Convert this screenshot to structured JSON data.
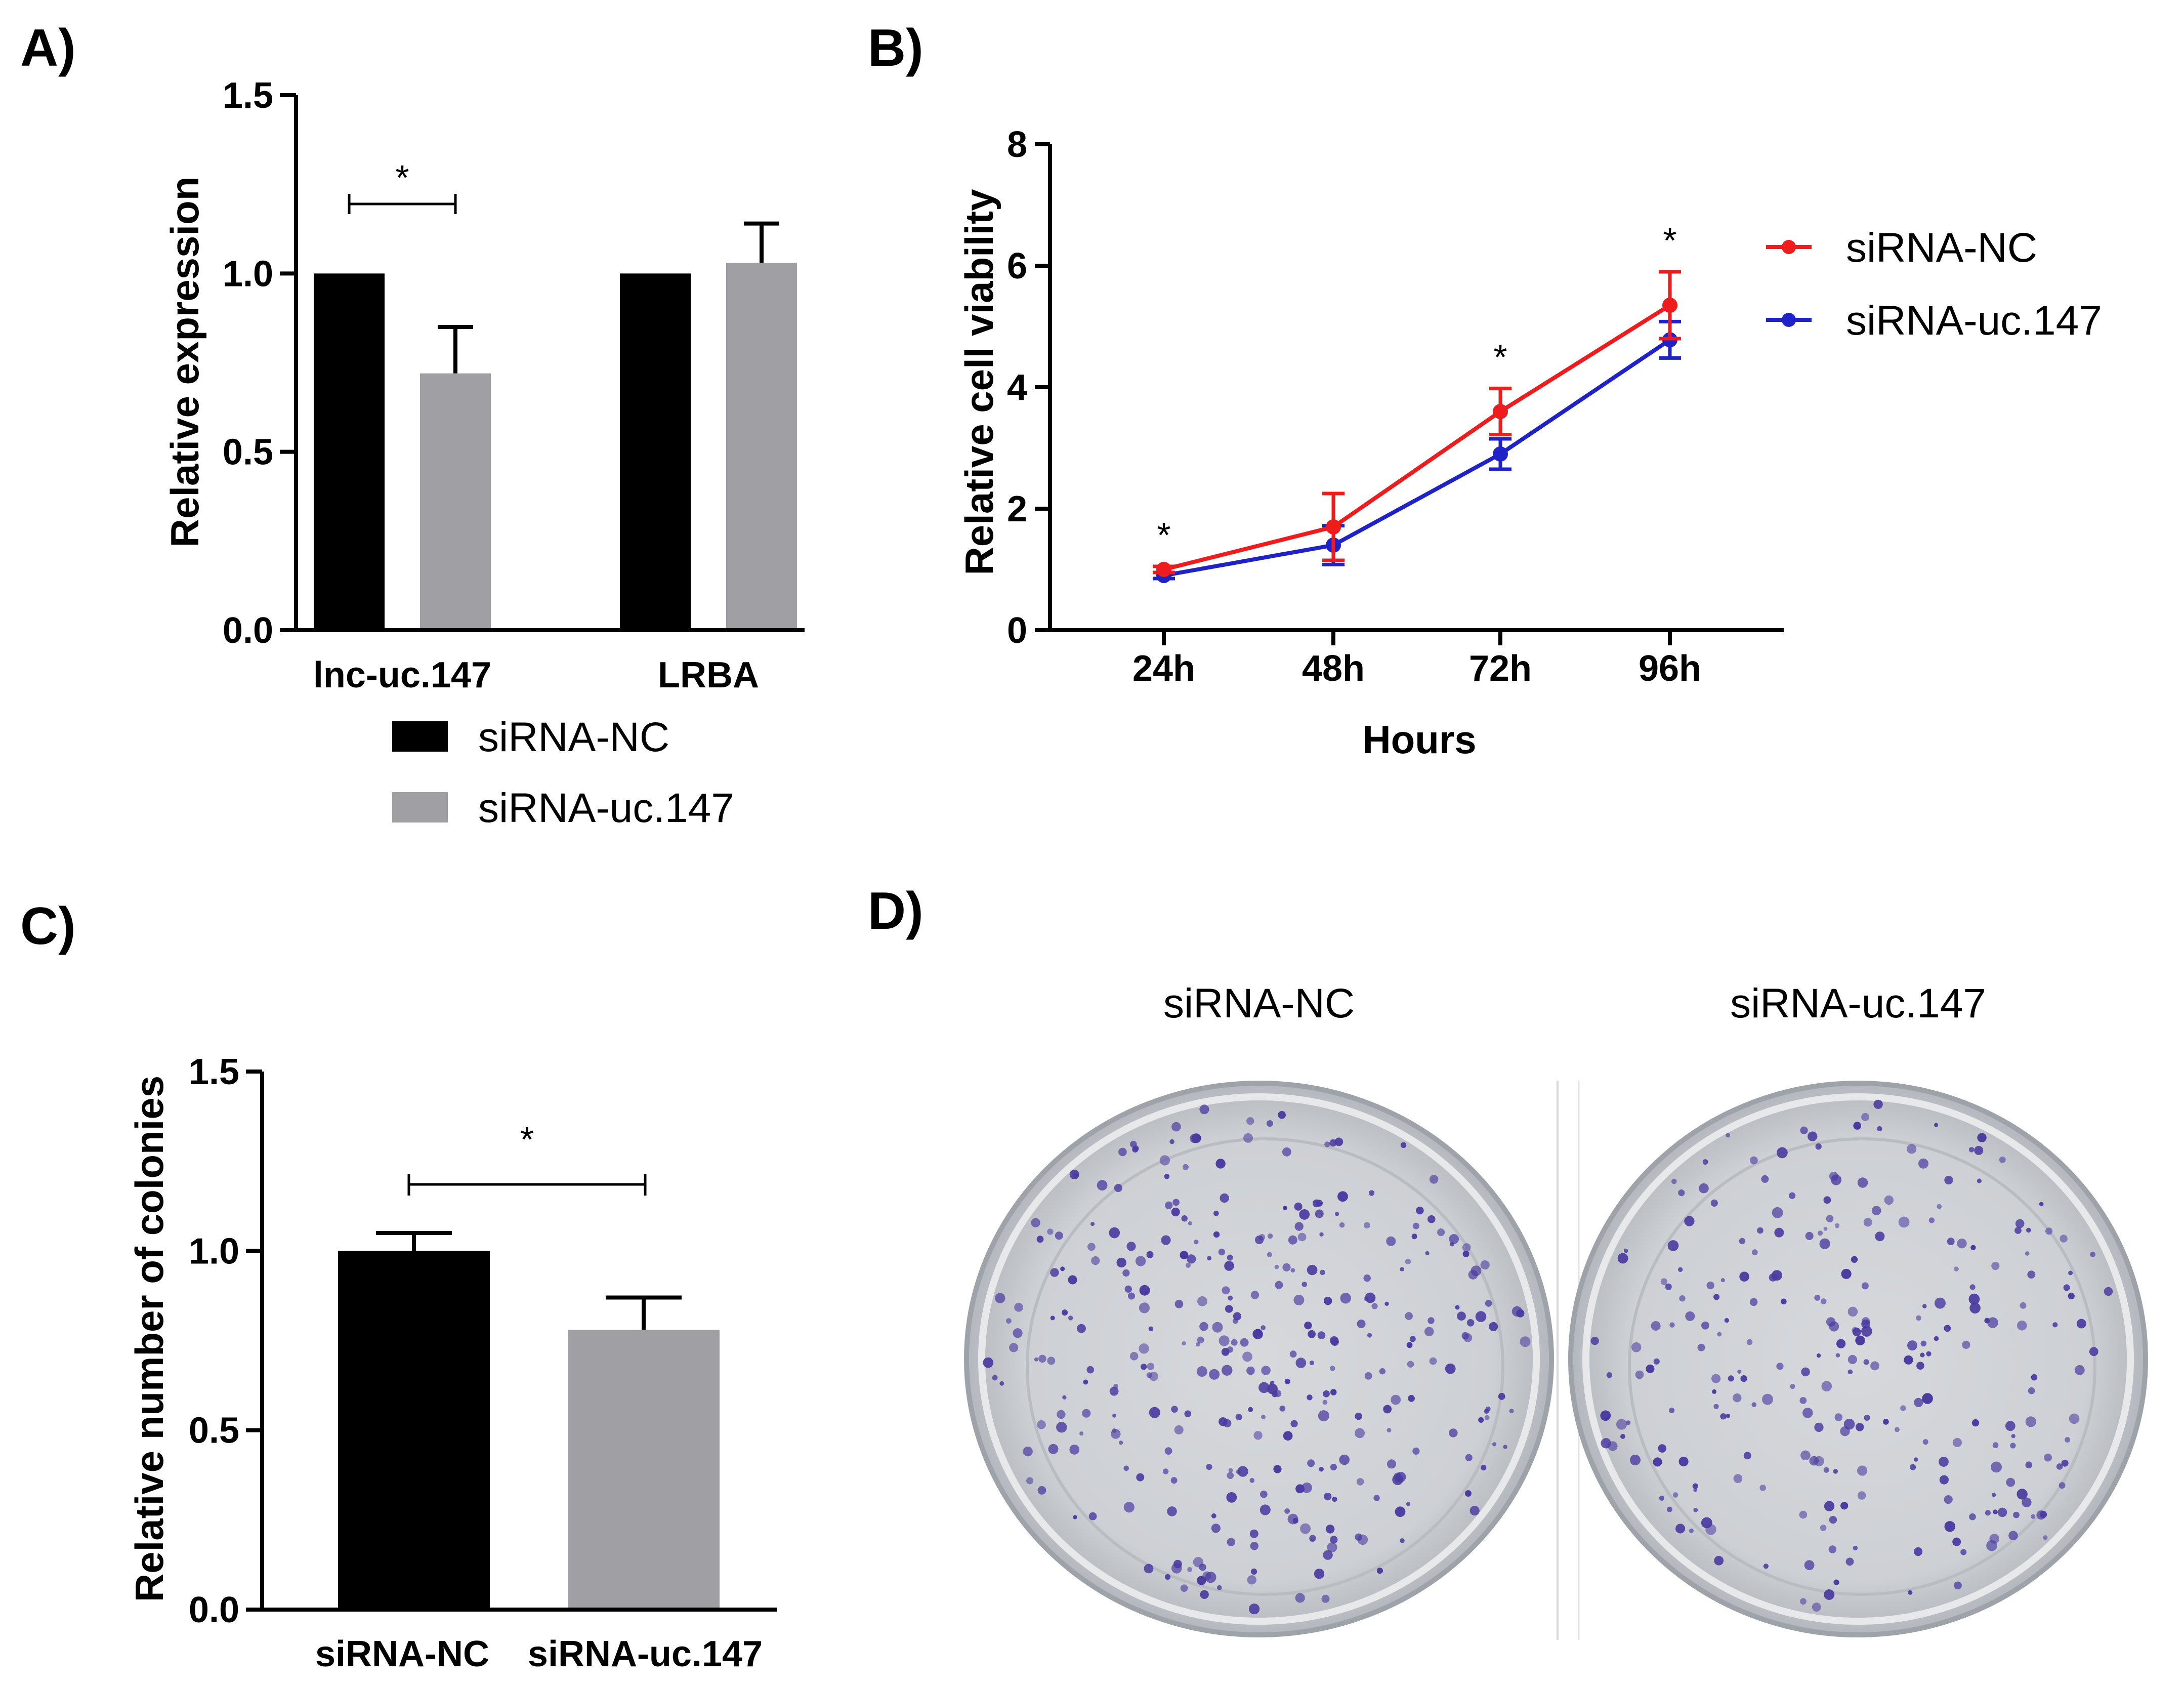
{
  "colors": {
    "siRNA_NC_bar": "#000000",
    "siRNA_uc147_bar": "#a0a0a4",
    "siRNA_NC_line": "#ee1c1c",
    "siRNA_uc147_line": "#1f22c8",
    "colony": "#4b3aa0",
    "plate": "#c9ccd0"
  },
  "chart_data": [
    {
      "panel": "A)",
      "type": "bar",
      "title": "",
      "ylabel": "Relative expression",
      "xlabel": "",
      "ylim": [
        0,
        1.5
      ],
      "yticks": [
        "0.0",
        "0.5",
        "1.0",
        "1.5"
      ],
      "categories": [
        "lnc-uc.147",
        "LRBA"
      ],
      "series": [
        {
          "name": "siRNA-NC",
          "values": [
            1.0,
            1.0
          ],
          "errors": [
            0,
            0
          ]
        },
        {
          "name": "siRNA-uc.147",
          "values": [
            0.72,
            1.03
          ],
          "errors": [
            0.13,
            0.11
          ]
        }
      ],
      "significance": [
        {
          "category": "lnc-uc.147",
          "label": "*"
        }
      ],
      "legend": [
        "siRNA-NC",
        "siRNA-uc.147"
      ],
      "legend_position": "bottom"
    },
    {
      "panel": "B)",
      "type": "line",
      "title": "",
      "ylabel": "Relative cell viability",
      "xlabel": "Hours",
      "ylim": [
        0,
        8
      ],
      "yticks": [
        "0",
        "2",
        "4",
        "6",
        "8"
      ],
      "x": [
        "24h",
        "48h",
        "72h",
        "96h"
      ],
      "series": [
        {
          "name": "siRNA-NC",
          "values": [
            1.0,
            1.7,
            3.6,
            5.35
          ],
          "errors": [
            0.05,
            0.55,
            0.38,
            0.55
          ]
        },
        {
          "name": "siRNA-uc.147",
          "values": [
            0.9,
            1.4,
            2.9,
            4.78
          ],
          "errors": [
            0.05,
            0.32,
            0.25,
            0.3
          ]
        }
      ],
      "significance": [
        "*",
        "",
        "*",
        "*"
      ],
      "legend": [
        "siRNA-NC",
        "siRNA-uc.147"
      ],
      "legend_position": "right"
    },
    {
      "panel": "C)",
      "type": "bar",
      "title": "",
      "ylabel": "Relative number of colonies",
      "xlabel": "",
      "ylim": [
        0,
        1.5
      ],
      "yticks": [
        "0.0",
        "0.5",
        "1.0",
        "1.5"
      ],
      "categories": [
        "siRNA-NC",
        "siRNA-uc.147"
      ],
      "values": [
        1.0,
        0.78
      ],
      "errors": [
        0.05,
        0.09
      ],
      "significance": [
        {
          "between": [
            "siRNA-NC",
            "siRNA-uc.147"
          ],
          "label": "*"
        }
      ]
    }
  ],
  "panel_d": {
    "label": "D)",
    "plates": [
      {
        "title": "siRNA-NC"
      },
      {
        "title": "siRNA-uc.147"
      }
    ]
  }
}
